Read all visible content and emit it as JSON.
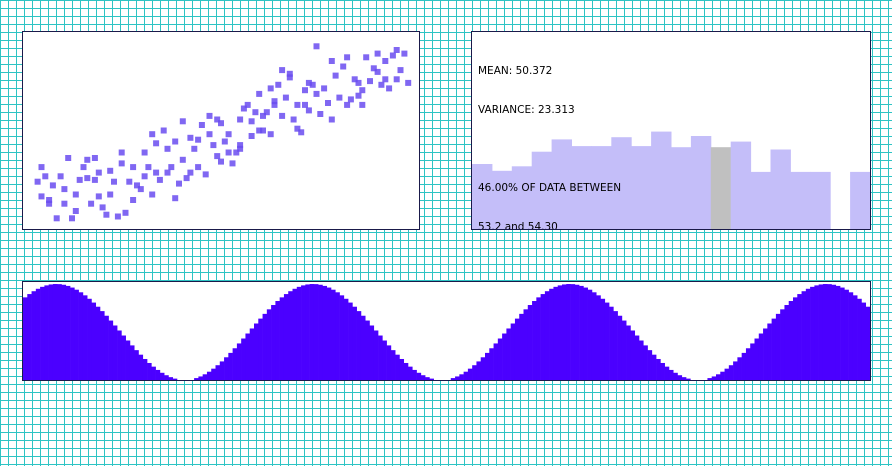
{
  "colors": {
    "grid": "#2ec4c4",
    "scatter_point": "#6a4cf0",
    "histogram_bar": "#c4bef9",
    "histogram_selected": "#c0c0c0",
    "wave_fill": "#4b00ff"
  },
  "stats": {
    "mean_label": "MEAN: 50.372",
    "variance_label": "VARIANCE: 23.313",
    "range_label": "46.00% OF DATA BETWEEN",
    "range_values": "53.2 and 54.30"
  },
  "chart_data": [
    {
      "type": "scatter",
      "xlim": [
        0,
        100
      ],
      "ylim": [
        0,
        100
      ],
      "points": [
        [
          2,
          22
        ],
        [
          3,
          14
        ],
        [
          4,
          25
        ],
        [
          5,
          10
        ],
        [
          6,
          20
        ],
        [
          7,
          2
        ],
        [
          8,
          25
        ],
        [
          9,
          18
        ],
        [
          10,
          35
        ],
        [
          11,
          2
        ],
        [
          12,
          15
        ],
        [
          13,
          23
        ],
        [
          14,
          30
        ],
        [
          15,
          34
        ],
        [
          16,
          10
        ],
        [
          17,
          23
        ],
        [
          17,
          35
        ],
        [
          18,
          27
        ],
        [
          19,
          8
        ],
        [
          20,
          4
        ],
        [
          21,
          15
        ],
        [
          22,
          22
        ],
        [
          23,
          3
        ],
        [
          24,
          38
        ],
        [
          25,
          5
        ],
        [
          26,
          22
        ],
        [
          27,
          30
        ],
        [
          28,
          20
        ],
        [
          29,
          18
        ],
        [
          30,
          25
        ],
        [
          31,
          30
        ],
        [
          32,
          15
        ],
        [
          33,
          43
        ],
        [
          33,
          27
        ],
        [
          34,
          23
        ],
        [
          35,
          50
        ],
        [
          36,
          40
        ],
        [
          37,
          30
        ],
        [
          38,
          13
        ],
        [
          39,
          21
        ],
        [
          40,
          55
        ],
        [
          40,
          34
        ],
        [
          41,
          24
        ],
        [
          42,
          46
        ],
        [
          43,
          40
        ],
        [
          44,
          30
        ],
        [
          45,
          53
        ],
        [
          46,
          26
        ],
        [
          47,
          48
        ],
        [
          48,
          42
        ],
        [
          49,
          56
        ],
        [
          49,
          36
        ],
        [
          50,
          33
        ],
        [
          51,
          44
        ],
        [
          52,
          48
        ],
        [
          53,
          32
        ],
        [
          54,
          38
        ],
        [
          55,
          56
        ],
        [
          55,
          42
        ],
        [
          56,
          62
        ],
        [
          57,
          64
        ],
        [
          58,
          55
        ],
        [
          59,
          60
        ],
        [
          60,
          70
        ],
        [
          61,
          50
        ],
        [
          61,
          58
        ],
        [
          62,
          60
        ],
        [
          63,
          48
        ],
        [
          64,
          66
        ],
        [
          65,
          75
        ],
        [
          66,
          58
        ],
        [
          66,
          83
        ],
        [
          67,
          68
        ],
        [
          68,
          81
        ],
        [
          68,
          79
        ],
        [
          69,
          56
        ],
        [
          70,
          64
        ],
        [
          71,
          49
        ],
        [
          72,
          72
        ],
        [
          73,
          61
        ],
        [
          74,
          75
        ],
        [
          75,
          96
        ],
        [
          75,
          70
        ],
        [
          76,
          59
        ],
        [
          77,
          73
        ],
        [
          78,
          65
        ],
        [
          79,
          56
        ],
        [
          80,
          80
        ],
        [
          81,
          68
        ],
        [
          82,
          85
        ],
        [
          83,
          64
        ],
        [
          84,
          67
        ],
        [
          85,
          78
        ],
        [
          86,
          69
        ],
        [
          87,
          72
        ],
        [
          88,
          90
        ],
        [
          89,
          77
        ],
        [
          90,
          84
        ],
        [
          91,
          82
        ],
        [
          92,
          75
        ],
        [
          93,
          88
        ],
        [
          94,
          73
        ],
        [
          95,
          91
        ],
        [
          96,
          78
        ],
        [
          97,
          83
        ],
        [
          98,
          92
        ],
        [
          99,
          76
        ],
        [
          3,
          30
        ],
        [
          9,
          10
        ],
        [
          15,
          24
        ],
        [
          21,
          28
        ],
        [
          27,
          12
        ],
        [
          36,
          27
        ],
        [
          44,
          45
        ],
        [
          52,
          38
        ],
        [
          58,
          47
        ],
        [
          63,
          73
        ],
        [
          70,
          51
        ],
        [
          79,
          88
        ],
        [
          86,
          76
        ],
        [
          93,
          78
        ],
        [
          5,
          12
        ],
        [
          30,
          38
        ],
        [
          42,
          27
        ],
        [
          47,
          58
        ],
        [
          60,
          50
        ],
        [
          72,
          64
        ],
        [
          83,
          90
        ],
        [
          91,
          92
        ],
        [
          55,
          40
        ],
        [
          32,
          48
        ],
        [
          24,
          32
        ],
        [
          12,
          6
        ],
        [
          64,
          64
        ],
        [
          73,
          76
        ],
        [
          87,
          64
        ],
        [
          96,
          94
        ],
        [
          50,
          54
        ],
        [
          38,
          44
        ],
        [
          18,
          14
        ]
      ]
    },
    {
      "type": "bar",
      "ylim": [
        0,
        100
      ],
      "values": [
        58,
        52,
        56,
        69,
        80,
        74,
        74,
        82,
        74,
        87,
        73,
        83,
        73,
        78,
        51,
        71,
        51,
        51,
        0,
        51
      ],
      "selected_index": 12
    },
    {
      "type": "area",
      "ylim": [
        0,
        1
      ],
      "periods": 3.3,
      "samples": 198
    }
  ]
}
